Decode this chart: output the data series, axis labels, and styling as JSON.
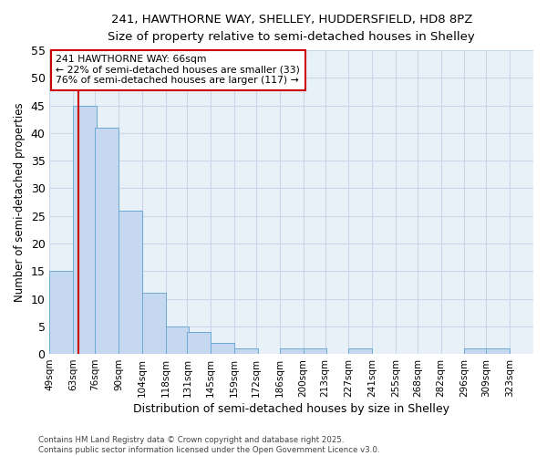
{
  "title1": "241, HAWTHORNE WAY, SHELLEY, HUDDERSFIELD, HD8 8PZ",
  "title2": "Size of property relative to semi-detached houses in Shelley",
  "xlabel": "Distribution of semi-detached houses by size in Shelley",
  "ylabel": "Number of semi-detached properties",
  "bin_labels": [
    "49sqm",
    "63sqm",
    "76sqm",
    "90sqm",
    "104sqm",
    "118sqm",
    "131sqm",
    "145sqm",
    "159sqm",
    "172sqm",
    "186sqm",
    "200sqm",
    "213sqm",
    "227sqm",
    "241sqm",
    "255sqm",
    "268sqm",
    "282sqm",
    "296sqm",
    "309sqm",
    "323sqm"
  ],
  "bin_edges": [
    49,
    63,
    76,
    90,
    104,
    118,
    131,
    145,
    159,
    172,
    186,
    200,
    213,
    227,
    241,
    255,
    268,
    282,
    296,
    309,
    323
  ],
  "counts": [
    15,
    45,
    41,
    26,
    11,
    5,
    4,
    2,
    1,
    0,
    1,
    1,
    0,
    1,
    0,
    0,
    0,
    0,
    1,
    1,
    0
  ],
  "bar_color": "#c5d8f0",
  "bar_edgecolor": "#6aaad4",
  "grid_color": "#c8d8e8",
  "plot_bg_color": "#e8f0f8",
  "red_line_x": 66,
  "annotation_title": "241 HAWTHORNE WAY: 66sqm",
  "annotation_line1": "← 22% of semi-detached houses are smaller (33)",
  "annotation_line2": "76% of semi-detached houses are larger (117) →",
  "annotation_box_color": "#ffffff",
  "annotation_box_edgecolor": "#cc0000",
  "red_line_color": "#cc0000",
  "footnote1": "Contains HM Land Registry data © Crown copyright and database right 2025.",
  "footnote2": "Contains public sector information licensed under the Open Government Licence v3.0.",
  "ylim": [
    0,
    55
  ],
  "yticks": [
    0,
    5,
    10,
    15,
    20,
    25,
    30,
    35,
    40,
    45,
    50,
    55
  ],
  "background_color": "#ffffff"
}
